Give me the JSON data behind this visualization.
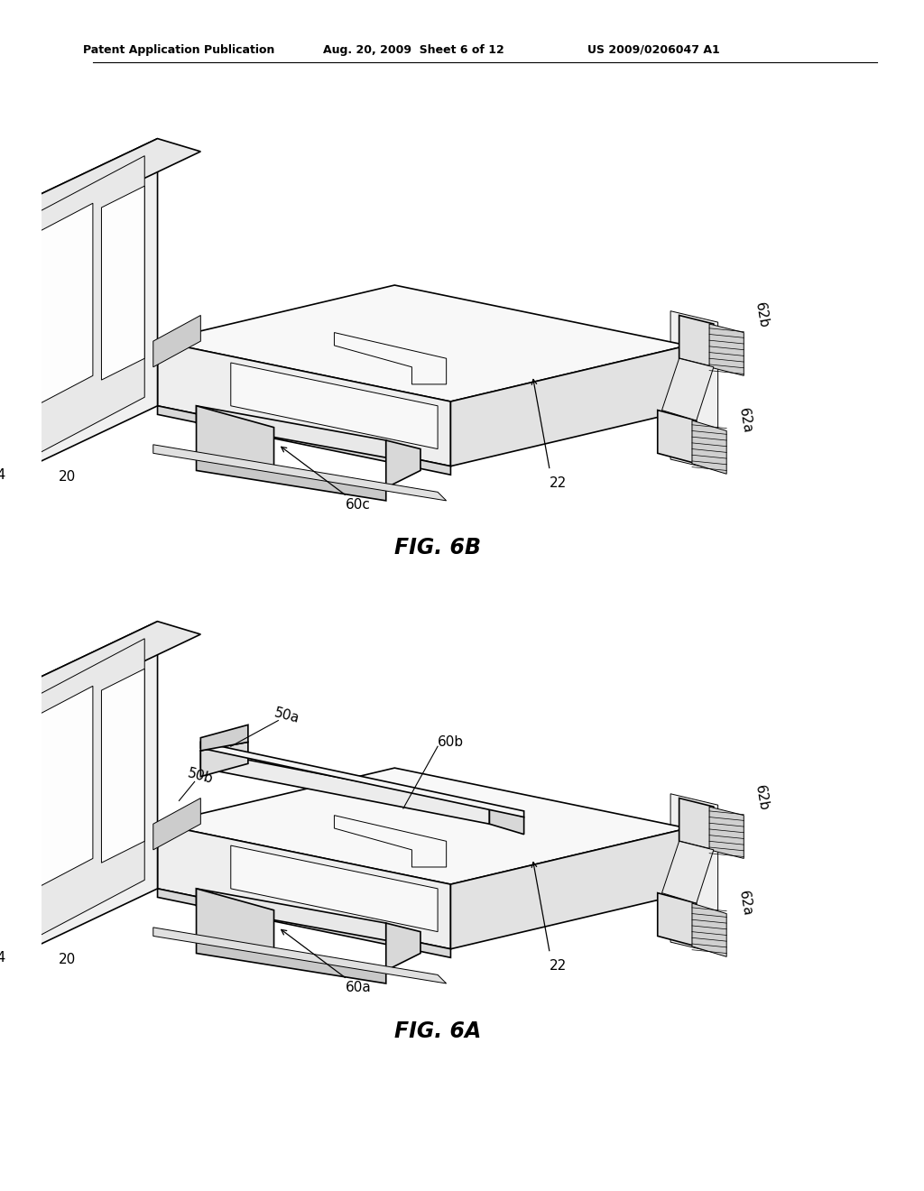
{
  "background_color": "#ffffff",
  "header_left": "Patent Application Publication",
  "header_center": "Aug. 20, 2009  Sheet 6 of 12",
  "header_right": "US 2009/0206047 A1",
  "fig_top_label": "FIG. 6B",
  "fig_bottom_label": "FIG. 6A",
  "font_color": "#000000",
  "line_color": "#000000",
  "lw": 1.2,
  "lw_thin": 0.7,
  "lw_thick": 1.5,
  "gray_light": "#f0f0f0",
  "gray_mid": "#d8d8d8",
  "gray_dark": "#b8b8b8",
  "white": "#ffffff"
}
